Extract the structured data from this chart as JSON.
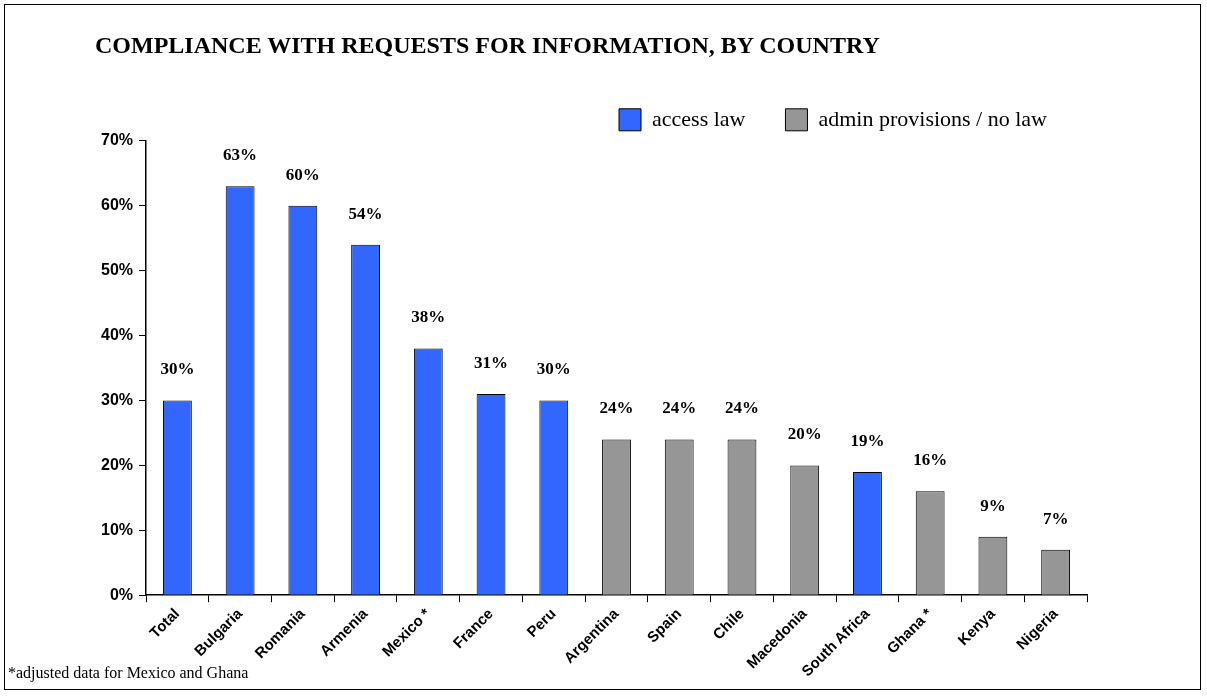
{
  "chart_data": {
    "type": "bar",
    "title": "COMPLIANCE WITH REQUESTS FOR INFORMATION, BY COUNTRY",
    "categories": [
      "Total",
      "Bulgaria",
      "Romania",
      "Armenia",
      "Mexico *",
      "France",
      "Peru",
      "Argentina",
      "Spain",
      "Chile",
      "Macedonia",
      "South Africa",
      "Ghana *",
      "Kenya",
      "Nigeria"
    ],
    "series": [
      {
        "name": "access law",
        "color": "#3366ff",
        "values": [
          30,
          63,
          60,
          54,
          38,
          31,
          30,
          null,
          null,
          null,
          null,
          19,
          null,
          null,
          null
        ],
        "value_labels": [
          "30%",
          "63%",
          "60%",
          "54%",
          "38%",
          "31%",
          "30%",
          null,
          null,
          null,
          null,
          "19%",
          null,
          null,
          null
        ]
      },
      {
        "name": "admin provisions / no law",
        "color": "#969696",
        "values": [
          null,
          null,
          null,
          null,
          null,
          null,
          null,
          24,
          24,
          24,
          20,
          null,
          16,
          9,
          7
        ],
        "value_labels": [
          null,
          null,
          null,
          null,
          null,
          null,
          null,
          "24%",
          "24%",
          "24%",
          "20%",
          null,
          "16%",
          "9%",
          "7%"
        ]
      }
    ],
    "ylim": [
      0,
      70
    ],
    "yticks": [
      {
        "value": 0,
        "label": "0%"
      },
      {
        "value": 10,
        "label": "10%"
      },
      {
        "value": 20,
        "label": "20%"
      },
      {
        "value": 30,
        "label": "30%"
      },
      {
        "value": 40,
        "label": "40%"
      },
      {
        "value": 50,
        "label": "50%"
      },
      {
        "value": 60,
        "label": "60%"
      },
      {
        "value": 70,
        "label": "70%"
      }
    ],
    "grid": false,
    "legend": "top right",
    "annotations": [
      "*adjusted data for Mexico and Ghana"
    ]
  }
}
